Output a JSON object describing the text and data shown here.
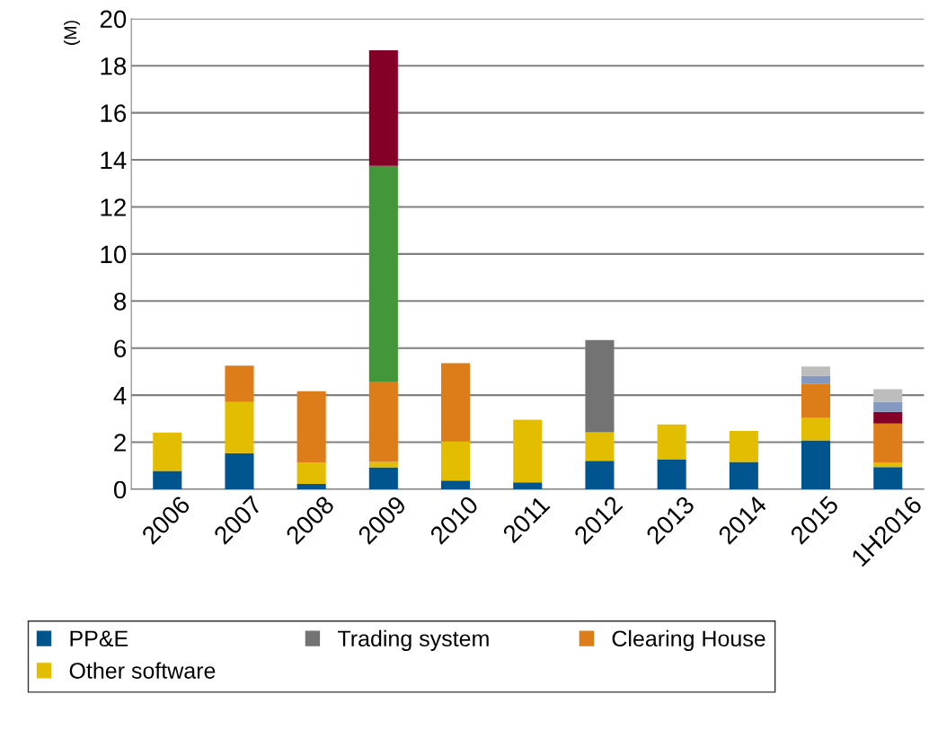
{
  "chart_data": {
    "type": "bar",
    "stacked": true,
    "ylabel": "(M)",
    "categories": [
      "2006",
      "2007",
      "2008",
      "2009",
      "2010",
      "2011",
      "2012",
      "2013",
      "2014",
      "2015",
      "1H2016"
    ],
    "series": [
      {
        "name": "PP&E",
        "color": "#00558f",
        "values": [
          0.78,
          1.53,
          0.23,
          0.93,
          0.37,
          0.29,
          1.21,
          1.28,
          1.16,
          2.08,
          0.94
        ]
      },
      {
        "name": "Other software",
        "color": "#e2bd00",
        "values": [
          1.63,
          2.18,
          0.9,
          0.23,
          1.66,
          2.67,
          1.21,
          1.48,
          1.32,
          0.95,
          0.18
        ]
      },
      {
        "name": "Trading system",
        "color": "#737373",
        "values": [
          null,
          null,
          null,
          null,
          null,
          null,
          3.92,
          null,
          null,
          null,
          null
        ]
      },
      {
        "name": "Clearing House",
        "color": "#dc7d1a",
        "values": [
          null,
          1.54,
          3.04,
          3.39,
          3.33,
          null,
          null,
          null,
          null,
          1.46,
          1.67
        ]
      },
      {
        "color": "#43973a",
        "values": [
          null,
          null,
          null,
          9.19,
          null,
          null,
          null,
          null,
          null,
          null,
          null
        ]
      },
      {
        "color": "#850029",
        "values": [
          null,
          null,
          null,
          4.92,
          null,
          null,
          null,
          null,
          null,
          null,
          0.5
        ]
      },
      {
        "color": "#8499c0",
        "values": [
          null,
          null,
          null,
          null,
          null,
          null,
          null,
          null,
          null,
          0.34,
          0.43
        ]
      },
      {
        "color": "#bdbdbd",
        "values": [
          null,
          null,
          null,
          null,
          null,
          null,
          null,
          null,
          null,
          0.39,
          0.53
        ]
      }
    ],
    "ylim": [
      0,
      20
    ],
    "yticks": [
      0,
      2,
      4,
      6,
      8,
      10,
      12,
      14,
      16,
      18,
      20
    ],
    "grid": "y",
    "legend": "bottom"
  }
}
